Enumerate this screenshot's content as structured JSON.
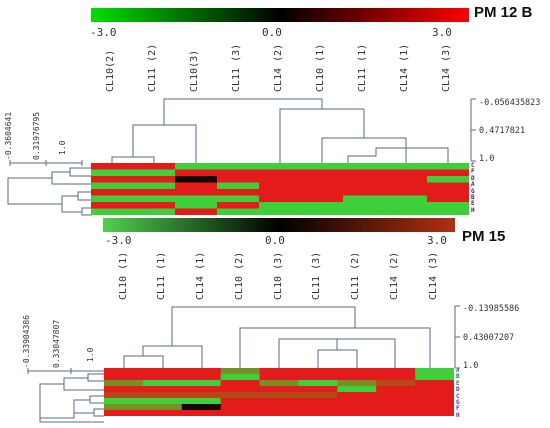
{
  "panels": [
    {
      "title": "PM 12 B",
      "scale_ticks": [
        "-3.0",
        "0.0",
        "3.0"
      ],
      "columns": [
        "CL10(2)",
        "CL11 (2)",
        "CL10(3)",
        "CL11 (3)",
        "CL14 (2)",
        "CL10 (1)",
        "CL11 (1)",
        "CL14 (1)",
        "CL14 (3)"
      ],
      "rows": [
        "C",
        "F",
        "D",
        "A",
        "G",
        "B",
        "E",
        "H"
      ],
      "col_scale": [
        "-0.056435823",
        "0.4717821",
        "1.0"
      ],
      "row_scale": [
        "-0.3604641",
        "0.31976795",
        "1.0"
      ],
      "cells": [
        [
          "r",
          "r",
          "g",
          "g",
          "g",
          "g",
          "g",
          "g",
          "g"
        ],
        [
          "g",
          "g",
          "r",
          "r",
          "r",
          "r",
          "r",
          "r",
          "r"
        ],
        [
          "r",
          "r",
          "k",
          "r",
          "r",
          "r",
          "r",
          "r",
          "g"
        ],
        [
          "g",
          "g",
          "r",
          "g",
          "r",
          "r",
          "r",
          "r",
          "r"
        ],
        [
          "r",
          "r",
          "r",
          "r",
          "r",
          "r",
          "r",
          "r",
          "r"
        ],
        [
          "g",
          "g",
          "g",
          "g",
          "r",
          "r",
          "g",
          "g",
          "r"
        ],
        [
          "r",
          "r",
          "g",
          "r",
          "g",
          "g",
          "g",
          "g",
          "g"
        ],
        [
          "g",
          "g",
          "r",
          "g",
          "g",
          "g",
          "g",
          "g",
          "g"
        ]
      ]
    },
    {
      "title": "PM 15",
      "scale_ticks": [
        "-3.0",
        "0.0",
        "3.0"
      ],
      "columns": [
        "CL10 (1)",
        "CL11 (1)",
        "CL14 (1)",
        "CL10 (2)",
        "CL10 (3)",
        "CL11 (3)",
        "CL11 (2)",
        "CL14 (2)",
        "CL14 (3)"
      ],
      "rows": [
        "A",
        "B",
        "E",
        "D",
        "C",
        "G",
        "F",
        "H"
      ],
      "col_scale": [
        "-0.13985586",
        "0.43007207",
        "1.0"
      ],
      "row_scale": [
        "-0.33904386",
        "0.33047807",
        "1.0"
      ],
      "cells": [
        [
          "r",
          "r",
          "r",
          "y",
          "r",
          "r",
          "r",
          "r",
          "g"
        ],
        [
          "r",
          "r",
          "r",
          "g",
          "r",
          "r",
          "r",
          "r",
          "g"
        ],
        [
          "y",
          "g",
          "g",
          "r",
          "y",
          "g",
          "y",
          "o",
          "r"
        ],
        [
          "r",
          "r",
          "r",
          "r",
          "r",
          "r",
          "g",
          "r",
          "r"
        ],
        [
          "o",
          "o",
          "o",
          "o",
          "o",
          "o",
          "r",
          "r",
          "r"
        ],
        [
          "g",
          "g",
          "g",
          "r",
          "r",
          "r",
          "r",
          "r",
          "r"
        ],
        [
          "y",
          "y",
          "k",
          "r",
          "r",
          "r",
          "r",
          "r",
          "r"
        ],
        [
          "r",
          "r",
          "r",
          "r",
          "r",
          "r",
          "r",
          "r",
          "r"
        ]
      ]
    }
  ],
  "colors": {
    "r": "#e41b1b",
    "g": "#3fcf3a",
    "k": "#1a0505",
    "y": "#7a8f22",
    "o": "#b24a1a",
    "row_labels_top": "#6a1030",
    "row_labels_bottom": [
      "#2a7a3a",
      "#7a1ba8"
    ]
  }
}
